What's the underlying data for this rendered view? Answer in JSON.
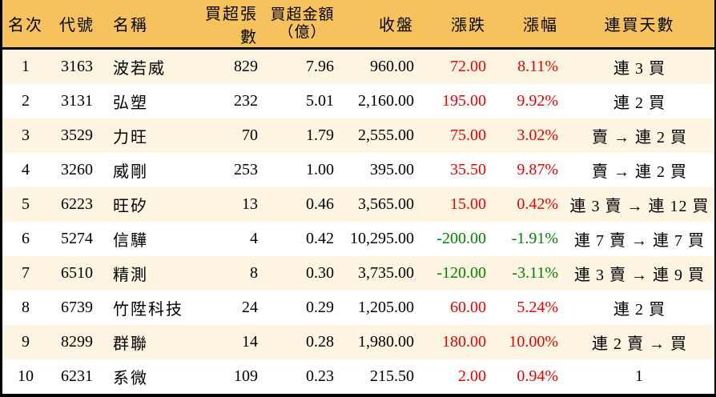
{
  "colors": {
    "header_bg": "#f6c25e",
    "row_alt_bg": "#fdf5e1",
    "row_bg": "#ffffff",
    "up": "#ed0000",
    "down": "#008000",
    "border": "#000000"
  },
  "table": {
    "headers": {
      "rank": "名次",
      "code": "代號",
      "name": "名稱",
      "buy_volume": "買超張數",
      "buy_amount_line1": "買超金額",
      "buy_amount_line2": "（億）",
      "close": "收盤",
      "change": "漲跌",
      "change_pct": "漲幅",
      "streak": "連買天數"
    },
    "rows": [
      {
        "rank": "1",
        "code": "3163",
        "name": "波若威",
        "buy_volume": "829",
        "buy_amount": "7.96",
        "close": "960.00",
        "change": "72.00",
        "change_pct": "8.11%",
        "streak": "連 3 買"
      },
      {
        "rank": "2",
        "code": "3131",
        "name": "弘塑",
        "buy_volume": "232",
        "buy_amount": "5.01",
        "close": "2,160.00",
        "change": "195.00",
        "change_pct": "9.92%",
        "streak": "連 2 買"
      },
      {
        "rank": "3",
        "code": "3529",
        "name": "力旺",
        "buy_volume": "70",
        "buy_amount": "1.79",
        "close": "2,555.00",
        "change": "75.00",
        "change_pct": "3.02%",
        "streak": "賣 → 連 2 買"
      },
      {
        "rank": "4",
        "code": "3260",
        "name": "威剛",
        "buy_volume": "253",
        "buy_amount": "1.00",
        "close": "395.00",
        "change": "35.50",
        "change_pct": "9.87%",
        "streak": "賣 → 連 2 買"
      },
      {
        "rank": "5",
        "code": "6223",
        "name": "旺矽",
        "buy_volume": "13",
        "buy_amount": "0.46",
        "close": "3,565.00",
        "change": "15.00",
        "change_pct": "0.42%",
        "streak": "連 3 賣 → 連 12 買"
      },
      {
        "rank": "6",
        "code": "5274",
        "name": "信驊",
        "buy_volume": "4",
        "buy_amount": "0.42",
        "close": "10,295.00",
        "change": "-200.00",
        "change_pct": "-1.91%",
        "streak": "連 7 賣 → 連 7 買"
      },
      {
        "rank": "7",
        "code": "6510",
        "name": "精測",
        "buy_volume": "8",
        "buy_amount": "0.30",
        "close": "3,735.00",
        "change": "-120.00",
        "change_pct": "-3.11%",
        "streak": "連 3 賣 → 連 9 買"
      },
      {
        "rank": "8",
        "code": "6739",
        "name": "竹陞科技",
        "buy_volume": "24",
        "buy_amount": "0.29",
        "close": "1,205.00",
        "change": "60.00",
        "change_pct": "5.24%",
        "streak": "連 2 買"
      },
      {
        "rank": "9",
        "code": "8299",
        "name": "群聯",
        "buy_volume": "14",
        "buy_amount": "0.28",
        "close": "1,980.00",
        "change": "180.00",
        "change_pct": "10.00%",
        "streak": "連 2 賣 → 買"
      },
      {
        "rank": "10",
        "code": "6231",
        "name": "系微",
        "buy_volume": "109",
        "buy_amount": "0.23",
        "close": "215.50",
        "change": "2.00",
        "change_pct": "0.94%",
        "streak": "1"
      }
    ]
  }
}
